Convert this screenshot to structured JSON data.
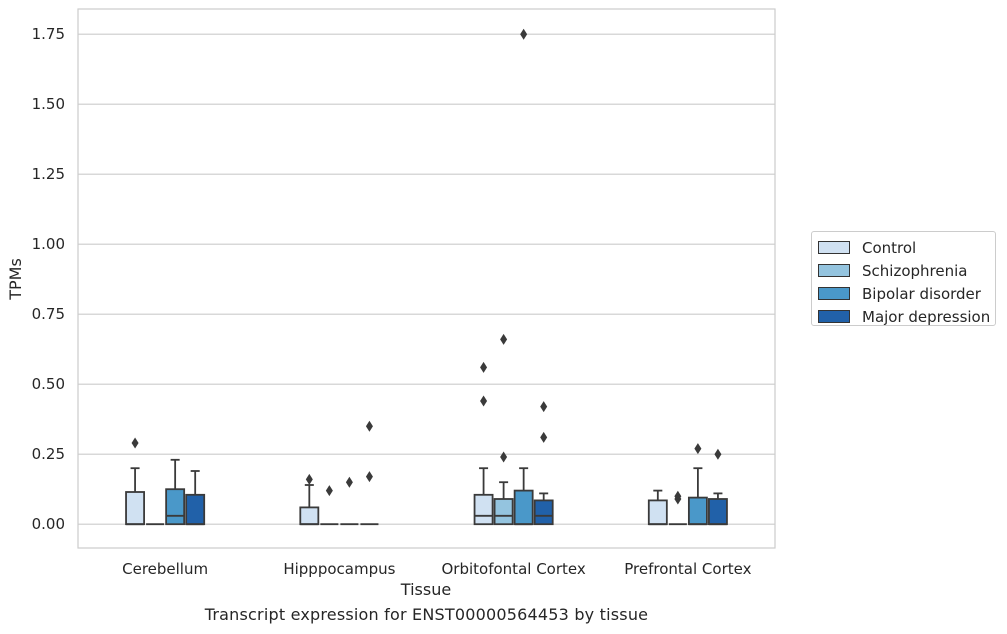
{
  "chart_data": {
    "type": "box",
    "caption": "Transcript expression for ENST00000564453 by tissue",
    "xlabel": "Tissue",
    "ylabel": "TPMs",
    "ylim": [
      -0.085,
      1.84
    ],
    "yticks": [
      "0.00",
      "0.25",
      "0.50",
      "0.75",
      "1.00",
      "1.25",
      "1.50",
      "1.75"
    ],
    "grid": true,
    "legend_position": "right",
    "categories": [
      "Cerebellum",
      "Hipppocampus",
      "Orbitofontal Cortex",
      "Prefrontal Cortex"
    ],
    "series": [
      {
        "name": "Control",
        "color": "#d0e1f2",
        "boxes": [
          {
            "q1": 0.0,
            "median": 0.0,
            "q3": 0.115,
            "whisker_low": 0.0,
            "whisker_high": 0.2,
            "outliers": [
              0.29
            ]
          },
          {
            "q1": 0.0,
            "median": 0.0,
            "q3": 0.06,
            "whisker_low": 0.0,
            "whisker_high": 0.14,
            "outliers": [
              0.16
            ]
          },
          {
            "q1": 0.0,
            "median": 0.03,
            "q3": 0.105,
            "whisker_low": 0.0,
            "whisker_high": 0.2,
            "outliers": [
              0.44,
              0.56
            ]
          },
          {
            "q1": 0.0,
            "median": 0.0,
            "q3": 0.085,
            "whisker_low": 0.0,
            "whisker_high": 0.12,
            "outliers": []
          }
        ]
      },
      {
        "name": "Schizophrenia",
        "color": "#94c4df",
        "boxes": [
          {
            "q1": 0.0,
            "median": 0.0,
            "q3": 0.0,
            "whisker_low": 0.0,
            "whisker_high": 0.0,
            "outliers": []
          },
          {
            "q1": 0.0,
            "median": 0.0,
            "q3": 0.0,
            "whisker_low": 0.0,
            "whisker_high": 0.0,
            "outliers": [
              0.12
            ]
          },
          {
            "q1": 0.0,
            "median": 0.03,
            "q3": 0.09,
            "whisker_low": 0.0,
            "whisker_high": 0.15,
            "outliers": [
              0.24,
              0.66
            ]
          },
          {
            "q1": 0.0,
            "median": 0.0,
            "q3": 0.0,
            "whisker_low": 0.0,
            "whisker_high": 0.0,
            "outliers": [
              0.09,
              0.1
            ]
          }
        ]
      },
      {
        "name": "Bipolar disorder",
        "color": "#4a98c9",
        "boxes": [
          {
            "q1": 0.0,
            "median": 0.03,
            "q3": 0.125,
            "whisker_low": 0.0,
            "whisker_high": 0.23,
            "outliers": []
          },
          {
            "q1": 0.0,
            "median": 0.0,
            "q3": 0.0,
            "whisker_low": 0.0,
            "whisker_high": 0.0,
            "outliers": [
              0.15
            ]
          },
          {
            "q1": 0.0,
            "median": 0.0,
            "q3": 0.12,
            "whisker_low": 0.0,
            "whisker_high": 0.2,
            "outliers": [
              1.75
            ]
          },
          {
            "q1": 0.0,
            "median": 0.0,
            "q3": 0.095,
            "whisker_low": 0.0,
            "whisker_high": 0.2,
            "outliers": [
              0.27
            ]
          }
        ]
      },
      {
        "name": "Major depression",
        "color": "#2161a9",
        "boxes": [
          {
            "q1": 0.0,
            "median": 0.0,
            "q3": 0.105,
            "whisker_low": 0.0,
            "whisker_high": 0.19,
            "outliers": []
          },
          {
            "q1": 0.0,
            "median": 0.0,
            "q3": 0.0,
            "whisker_low": 0.0,
            "whisker_high": 0.0,
            "outliers": [
              0.17,
              0.35
            ]
          },
          {
            "q1": 0.0,
            "median": 0.03,
            "q3": 0.085,
            "whisker_low": 0.0,
            "whisker_high": 0.11,
            "outliers": [
              0.31,
              0.42
            ]
          },
          {
            "q1": 0.0,
            "median": 0.0,
            "q3": 0.09,
            "whisker_low": 0.0,
            "whisker_high": 0.11,
            "outliers": [
              0.25
            ]
          }
        ]
      }
    ]
  }
}
